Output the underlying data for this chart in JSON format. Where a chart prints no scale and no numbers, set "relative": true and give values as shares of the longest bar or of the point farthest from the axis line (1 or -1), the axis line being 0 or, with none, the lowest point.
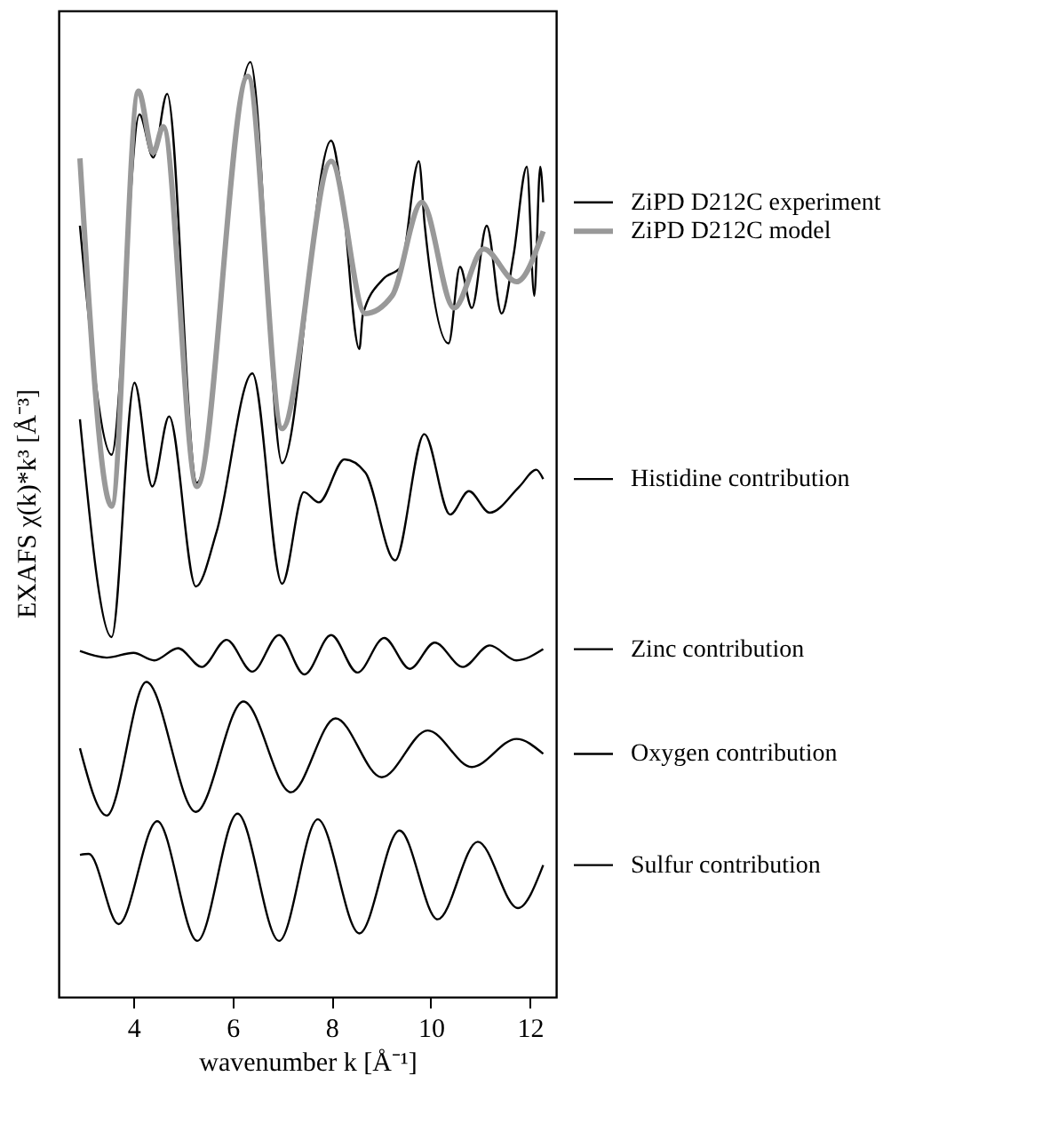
{
  "chart_data": {
    "type": "line",
    "relative": true,
    "xlabel": "wavenumber k [Å⁻¹]",
    "ylabel": "EXAFS χ(k)*k³ [Å⁻³]",
    "xlim": [
      2.49,
      12.53
    ],
    "xticks": [
      4,
      6,
      8,
      10,
      12
    ],
    "grid": false,
    "legend": "right",
    "marker": "none",
    "line_style": "solid",
    "series": [
      {
        "name": "ZiPD D212C experiment",
        "color": "#000000",
        "x": [
          2.92,
          3.56,
          4.12,
          4.4,
          4.68,
          5.28,
          6.36,
          7.0,
          7.99,
          8.2,
          8.56,
          8.63,
          9.04,
          9.4,
          9.76,
          9.88,
          10.36,
          10.59,
          10.83,
          11.13,
          11.43,
          11.67,
          11.94,
          12.09,
          12.21,
          12.27
        ],
        "values": [
          0.825,
          0.58,
          0.944,
          0.898,
          0.966,
          0.55,
          1.0,
          0.571,
          0.916,
          0.862,
          0.693,
          0.73,
          0.768,
          0.781,
          0.894,
          0.825,
          0.699,
          0.781,
          0.737,
          0.825,
          0.731,
          0.793,
          0.888,
          0.75,
          0.888,
          0.85
        ]
      },
      {
        "name": "ZiPD D212C model",
        "color": "#999999",
        "x": [
          2.92,
          3.56,
          4.1,
          4.4,
          4.6,
          5.28,
          6.31,
          7.0,
          7.99,
          8.68,
          9.22,
          9.82,
          10.47,
          11.07,
          11.73,
          12.27
        ],
        "values": [
          0.897,
          0.525,
          0.969,
          0.903,
          0.931,
          0.546,
          0.985,
          0.608,
          0.894,
          0.731,
          0.75,
          0.85,
          0.737,
          0.8,
          0.765,
          0.819
        ]
      },
      {
        "name": "Histidine contribution",
        "color": "#000000",
        "x": [
          2.92,
          3.56,
          4.02,
          4.38,
          4.72,
          5.26,
          5.68,
          6.4,
          7.0,
          7.44,
          7.74,
          8.26,
          8.68,
          9.28,
          9.87,
          10.39,
          10.77,
          11.19,
          11.79,
          12.13,
          12.27
        ],
        "values": [
          0.618,
          0.385,
          0.657,
          0.546,
          0.621,
          0.439,
          0.498,
          0.667,
          0.442,
          0.54,
          0.529,
          0.575,
          0.561,
          0.467,
          0.602,
          0.516,
          0.541,
          0.518,
          0.546,
          0.564,
          0.554
        ]
      },
      {
        "name": "Zinc contribution",
        "color": "#000000",
        "x": [
          2.92,
          3.46,
          4.0,
          4.42,
          4.9,
          5.38,
          5.88,
          6.4,
          6.94,
          7.45,
          7.99,
          8.52,
          9.06,
          9.58,
          10.08,
          10.65,
          11.19,
          11.73,
          12.27
        ],
        "values": [
          0.37,
          0.363,
          0.368,
          0.36,
          0.373,
          0.353,
          0.382,
          0.348,
          0.387,
          0.345,
          0.387,
          0.347,
          0.384,
          0.351,
          0.379,
          0.353,
          0.376,
          0.36,
          0.372
        ]
      },
      {
        "name": "Oxygen contribution",
        "color": "#000000",
        "x": [
          2.92,
          3.46,
          4.26,
          5.26,
          6.22,
          7.18,
          8.08,
          9.01,
          9.94,
          10.83,
          11.73,
          12.27
        ],
        "values": [
          0.266,
          0.194,
          0.337,
          0.198,
          0.316,
          0.219,
          0.298,
          0.235,
          0.285,
          0.246,
          0.276,
          0.26
        ]
      },
      {
        "name": "Sulfur contribution",
        "color": "#000000",
        "x": [
          2.92,
          3.1,
          3.7,
          4.48,
          5.29,
          6.1,
          6.94,
          7.72,
          8.56,
          9.37,
          10.14,
          10.95,
          11.76,
          12.27
        ],
        "values": [
          0.152,
          0.153,
          0.078,
          0.188,
          0.06,
          0.196,
          0.06,
          0.19,
          0.068,
          0.178,
          0.083,
          0.166,
          0.095,
          0.141
        ]
      }
    ]
  }
}
